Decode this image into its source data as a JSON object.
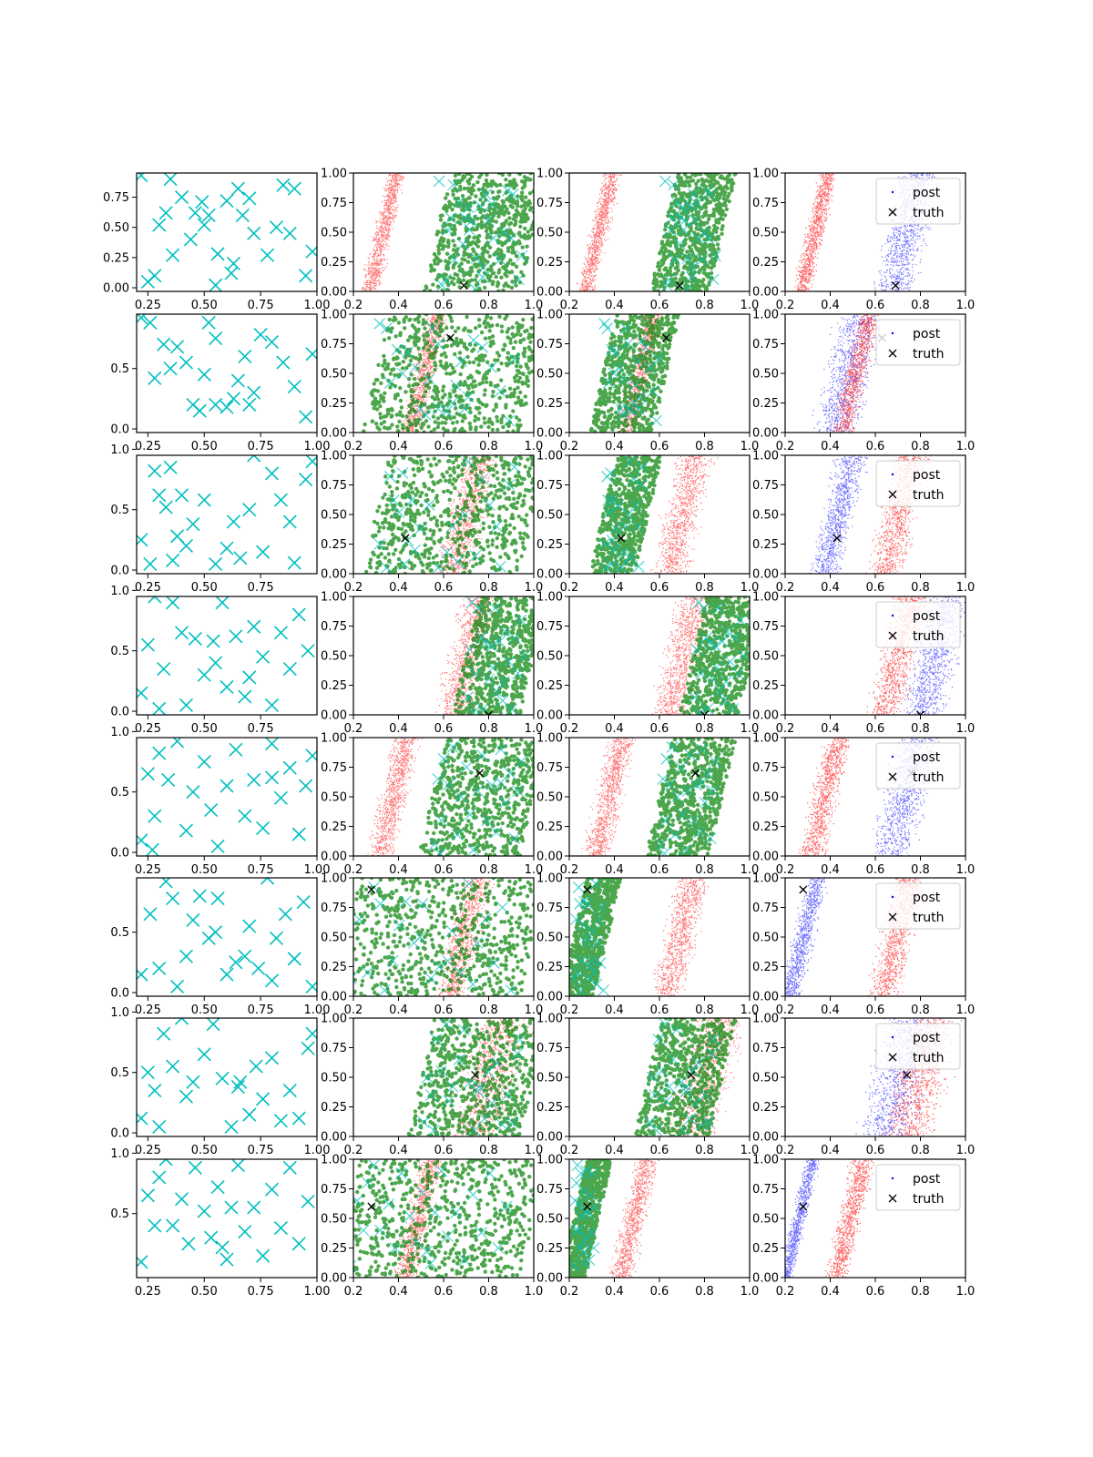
{
  "figure": {
    "title": "",
    "rows": 8,
    "columns": 4,
    "colors": {
      "data_points": "#00bfbf",
      "prior_region": "#ff0000",
      "proposal_region": "#008000",
      "posterior": "#0000ff",
      "truth": "#000000",
      "axes": "#000000",
      "background": "#ffffff"
    },
    "legend": {
      "post_label": "post",
      "truth_label": "truth",
      "placement": "top-right"
    }
  },
  "chart_data": [
    {
      "type": "scatter",
      "row": 1,
      "truth": [
        0.69,
        0.05
      ],
      "red_band": [
        0.28,
        0.38
      ],
      "blue_band": [
        0.62,
        0.85
      ],
      "data_points": [
        [
          0.22,
          0.93
        ],
        [
          0.28,
          0.1
        ],
        [
          0.3,
          0.52
        ],
        [
          0.33,
          0.62
        ],
        [
          0.36,
          0.27
        ],
        [
          0.4,
          0.75
        ],
        [
          0.44,
          0.4
        ],
        [
          0.46,
          0.62
        ],
        [
          0.49,
          0.71
        ],
        [
          0.5,
          0.52
        ],
        [
          0.52,
          0.6
        ],
        [
          0.56,
          0.28
        ],
        [
          0.6,
          0.72
        ],
        [
          0.63,
          0.2
        ],
        [
          0.65,
          0.82
        ],
        [
          0.67,
          0.6
        ],
        [
          0.7,
          0.74
        ],
        [
          0.72,
          0.45
        ],
        [
          0.78,
          0.27
        ],
        [
          0.82,
          0.5
        ],
        [
          0.85,
          0.85
        ],
        [
          0.88,
          0.45
        ],
        [
          0.9,
          0.82
        ],
        [
          0.95,
          0.1
        ],
        [
          0.98,
          0.3
        ],
        [
          0.25,
          0.05
        ],
        [
          0.55,
          0.02
        ],
        [
          0.62,
          0.12
        ],
        [
          0.35,
          0.9
        ]
      ],
      "x_ticks": [
        "0.25",
        "0.50",
        "0.75",
        "1.00"
      ],
      "y_ticks": [
        "0.00",
        "0.25",
        "0.50",
        "0.75"
      ],
      "zoom_x_ticks": [
        "0.2",
        "0.4",
        "0.6",
        "0.8",
        "1.0"
      ],
      "zoom_y_ticks": [
        "0.00",
        "0.25",
        "0.50",
        "0.75",
        "1.00"
      ]
    },
    {
      "type": "scatter",
      "row": 2,
      "truth": [
        0.63,
        0.8
      ],
      "red_band": [
        0.45,
        0.57
      ],
      "blue_band": [
        0.35,
        0.6
      ],
      "data_points": [
        [
          0.22,
          0.92
        ],
        [
          0.26,
          0.88
        ],
        [
          0.28,
          0.42
        ],
        [
          0.32,
          0.7
        ],
        [
          0.38,
          0.68
        ],
        [
          0.42,
          0.55
        ],
        [
          0.45,
          0.2
        ],
        [
          0.48,
          0.15
        ],
        [
          0.5,
          0.45
        ],
        [
          0.52,
          0.88
        ],
        [
          0.55,
          0.75
        ],
        [
          0.6,
          0.18
        ],
        [
          0.63,
          0.25
        ],
        [
          0.65,
          0.4
        ],
        [
          0.68,
          0.6
        ],
        [
          0.72,
          0.3
        ],
        [
          0.75,
          0.78
        ],
        [
          0.8,
          0.72
        ],
        [
          0.85,
          0.55
        ],
        [
          0.9,
          0.35
        ],
        [
          0.95,
          0.1
        ],
        [
          0.98,
          0.62
        ],
        [
          0.55,
          0.2
        ],
        [
          0.35,
          0.5
        ],
        [
          0.7,
          0.2
        ]
      ],
      "x_ticks": [
        "0.25",
        "0.50",
        "0.75",
        "1.00"
      ],
      "y_ticks": [
        "0.0",
        "0.5"
      ],
      "zoom_x_ticks": [
        "0.2",
        "0.4",
        "0.6",
        "0.8",
        "1.0"
      ],
      "zoom_y_ticks": [
        "0.00",
        "0.25",
        "0.50",
        "0.75",
        "1.00"
      ]
    },
    {
      "type": "scatter",
      "row": 3,
      "truth": [
        0.43,
        0.3
      ],
      "red_band": [
        0.6,
        0.8
      ],
      "blue_band": [
        0.35,
        0.52
      ],
      "data_points": [
        [
          0.22,
          0.25
        ],
        [
          0.26,
          0.05
        ],
        [
          0.28,
          0.82
        ],
        [
          0.3,
          0.62
        ],
        [
          0.33,
          0.52
        ],
        [
          0.35,
          0.85
        ],
        [
          0.38,
          0.28
        ],
        [
          0.4,
          0.62
        ],
        [
          0.42,
          0.2
        ],
        [
          0.45,
          0.38
        ],
        [
          0.5,
          0.58
        ],
        [
          0.55,
          0.05
        ],
        [
          0.6,
          0.18
        ],
        [
          0.63,
          0.4
        ],
        [
          0.66,
          0.1
        ],
        [
          0.7,
          0.5
        ],
        [
          0.72,
          0.95
        ],
        [
          0.76,
          0.15
        ],
        [
          0.8,
          0.8
        ],
        [
          0.84,
          0.58
        ],
        [
          0.88,
          0.4
        ],
        [
          0.9,
          0.06
        ],
        [
          0.95,
          0.75
        ],
        [
          0.98,
          0.9
        ],
        [
          0.36,
          0.08
        ]
      ],
      "x_ticks": [
        "0.25",
        "0.50",
        "0.75"
      ],
      "y_ticks": [
        "0.0",
        "0.5",
        "1.0"
      ],
      "zoom_x_ticks": [
        "0.2",
        "0.4",
        "0.6",
        "0.8",
        "1.0"
      ],
      "zoom_y_ticks": [
        "0.00",
        "0.25",
        "0.50",
        "0.75",
        "1.00"
      ]
    },
    {
      "type": "scatter",
      "row": 4,
      "truth": [
        0.8,
        0.0
      ],
      "red_band": [
        0.6,
        0.8
      ],
      "blue_band": [
        0.75,
        0.98
      ],
      "data_points": [
        [
          0.22,
          0.15
        ],
        [
          0.25,
          0.55
        ],
        [
          0.28,
          0.95
        ],
        [
          0.32,
          0.35
        ],
        [
          0.36,
          0.9
        ],
        [
          0.4,
          0.65
        ],
        [
          0.42,
          0.05
        ],
        [
          0.46,
          0.6
        ],
        [
          0.5,
          0.3
        ],
        [
          0.54,
          0.58
        ],
        [
          0.58,
          0.9
        ],
        [
          0.6,
          0.2
        ],
        [
          0.64,
          0.62
        ],
        [
          0.68,
          0.12
        ],
        [
          0.72,
          0.7
        ],
        [
          0.76,
          0.45
        ],
        [
          0.8,
          0.05
        ],
        [
          0.84,
          0.65
        ],
        [
          0.88,
          0.35
        ],
        [
          0.92,
          0.8
        ],
        [
          0.96,
          0.5
        ],
        [
          0.3,
          0.02
        ],
        [
          0.55,
          0.4
        ],
        [
          0.7,
          0.28
        ]
      ],
      "x_ticks": [
        "0.25",
        "0.50",
        "0.75"
      ],
      "y_ticks": [
        "0.0",
        "0.5",
        "1.0"
      ],
      "zoom_x_ticks": [
        "0.2",
        "0.4",
        "0.6",
        "0.8",
        "1.0"
      ],
      "zoom_y_ticks": [
        "0.00",
        "0.25",
        "0.50",
        "0.75",
        "1.00"
      ]
    },
    {
      "type": "scatter",
      "row": 5,
      "truth": [
        0.76,
        0.7
      ],
      "red_band": [
        0.3,
        0.45
      ],
      "blue_band": [
        0.6,
        0.85
      ],
      "data_points": [
        [
          0.22,
          0.1
        ],
        [
          0.25,
          0.65
        ],
        [
          0.28,
          0.3
        ],
        [
          0.3,
          0.82
        ],
        [
          0.34,
          0.6
        ],
        [
          0.38,
          0.92
        ],
        [
          0.42,
          0.18
        ],
        [
          0.45,
          0.5
        ],
        [
          0.5,
          0.75
        ],
        [
          0.53,
          0.35
        ],
        [
          0.56,
          0.05
        ],
        [
          0.6,
          0.55
        ],
        [
          0.64,
          0.85
        ],
        [
          0.68,
          0.3
        ],
        [
          0.72,
          0.6
        ],
        [
          0.76,
          0.2
        ],
        [
          0.8,
          0.9
        ],
        [
          0.84,
          0.45
        ],
        [
          0.88,
          0.7
        ],
        [
          0.92,
          0.15
        ],
        [
          0.95,
          0.55
        ],
        [
          0.98,
          0.8
        ],
        [
          0.27,
          0.02
        ],
        [
          0.8,
          0.62
        ]
      ],
      "x_ticks": [
        "0.25",
        "0.50",
        "0.75",
        "1.00"
      ],
      "y_ticks": [
        "0.0",
        "0.5",
        "1.0"
      ],
      "zoom_x_ticks": [
        "0.2",
        "0.4",
        "0.6",
        "0.8",
        "1.0"
      ],
      "zoom_y_ticks": [
        "0.00",
        "0.25",
        "0.50",
        "0.75",
        "1.00"
      ]
    },
    {
      "type": "scatter",
      "row": 6,
      "truth": [
        0.28,
        0.9
      ],
      "red_band": [
        0.6,
        0.78
      ],
      "blue_band": [
        0.22,
        0.34
      ],
      "data_points": [
        [
          0.22,
          0.15
        ],
        [
          0.26,
          0.65
        ],
        [
          0.3,
          0.2
        ],
        [
          0.33,
          0.92
        ],
        [
          0.36,
          0.78
        ],
        [
          0.38,
          0.05
        ],
        [
          0.42,
          0.3
        ],
        [
          0.45,
          0.6
        ],
        [
          0.48,
          0.8
        ],
        [
          0.52,
          0.45
        ],
        [
          0.56,
          0.78
        ],
        [
          0.6,
          0.15
        ],
        [
          0.64,
          0.25
        ],
        [
          0.68,
          0.3
        ],
        [
          0.7,
          0.55
        ],
        [
          0.74,
          0.2
        ],
        [
          0.78,
          0.95
        ],
        [
          0.82,
          0.45
        ],
        [
          0.86,
          0.65
        ],
        [
          0.9,
          0.28
        ],
        [
          0.94,
          0.75
        ],
        [
          0.98,
          0.05
        ],
        [
          0.55,
          0.5
        ],
        [
          0.8,
          0.1
        ]
      ],
      "x_ticks": [
        "0.25",
        "0.50",
        "0.75",
        "1.00"
      ],
      "y_ticks": [
        "0.0",
        "0.5"
      ],
      "zoom_x_ticks": [
        "0.2",
        "0.4",
        "0.6",
        "0.8",
        "1.0"
      ],
      "zoom_y_ticks": [
        "0.00",
        "0.25",
        "0.50",
        "0.75",
        "1.00"
      ]
    },
    {
      "type": "scatter",
      "row": 7,
      "truth": [
        0.74,
        0.52
      ],
      "red_band": [
        0.65,
        0.95
      ],
      "blue_band": [
        0.55,
        0.85
      ],
      "data_points": [
        [
          0.22,
          0.12
        ],
        [
          0.25,
          0.5
        ],
        [
          0.28,
          0.35
        ],
        [
          0.32,
          0.82
        ],
        [
          0.36,
          0.55
        ],
        [
          0.4,
          0.95
        ],
        [
          0.42,
          0.3
        ],
        [
          0.45,
          0.42
        ],
        [
          0.5,
          0.65
        ],
        [
          0.54,
          0.9
        ],
        [
          0.58,
          0.45
        ],
        [
          0.62,
          0.05
        ],
        [
          0.65,
          0.38
        ],
        [
          0.7,
          0.15
        ],
        [
          0.73,
          0.55
        ],
        [
          0.76,
          0.28
        ],
        [
          0.8,
          0.62
        ],
        [
          0.84,
          0.1
        ],
        [
          0.88,
          0.35
        ],
        [
          0.92,
          0.12
        ],
        [
          0.96,
          0.7
        ],
        [
          0.98,
          0.82
        ],
        [
          0.66,
          0.42
        ],
        [
          0.3,
          0.05
        ]
      ],
      "x_ticks": [
        "0.25",
        "0.50",
        "0.75",
        "1.00"
      ],
      "y_ticks": [
        "0.0",
        "0.5",
        "1.0"
      ],
      "zoom_x_ticks": [
        "0.2",
        "0.4",
        "0.6",
        "0.8",
        "1.0"
      ],
      "zoom_y_ticks": [
        "0.00",
        "0.25",
        "0.50",
        "0.75",
        "1.00"
      ]
    },
    {
      "type": "scatter",
      "row": 8,
      "truth": [
        0.28,
        0.6
      ],
      "red_band": [
        0.42,
        0.55
      ],
      "blue_band": [
        0.22,
        0.3
      ],
      "data_points": [
        [
          0.22,
          0.1
        ],
        [
          0.25,
          0.65
        ],
        [
          0.28,
          0.4
        ],
        [
          0.3,
          0.8
        ],
        [
          0.33,
          0.95
        ],
        [
          0.36,
          0.4
        ],
        [
          0.4,
          0.62
        ],
        [
          0.43,
          0.25
        ],
        [
          0.46,
          0.88
        ],
        [
          0.5,
          0.52
        ],
        [
          0.53,
          0.3
        ],
        [
          0.56,
          0.72
        ],
        [
          0.6,
          0.12
        ],
        [
          0.62,
          0.55
        ],
        [
          0.65,
          0.9
        ],
        [
          0.68,
          0.35
        ],
        [
          0.72,
          0.55
        ],
        [
          0.76,
          0.15
        ],
        [
          0.8,
          0.7
        ],
        [
          0.84,
          0.38
        ],
        [
          0.88,
          0.88
        ],
        [
          0.92,
          0.25
        ],
        [
          0.96,
          0.6
        ],
        [
          0.58,
          0.22
        ]
      ],
      "x_ticks": [
        "0.25",
        "0.50",
        "0.75",
        "1.00"
      ],
      "y_ticks": [
        "0.5",
        "1.0"
      ],
      "zoom_x_ticks": [
        "0.2",
        "0.4",
        "0.6",
        "0.8",
        "1.0"
      ],
      "zoom_y_ticks": [
        "0.00",
        "0.25",
        "0.50",
        "0.75",
        "1.00"
      ]
    }
  ]
}
